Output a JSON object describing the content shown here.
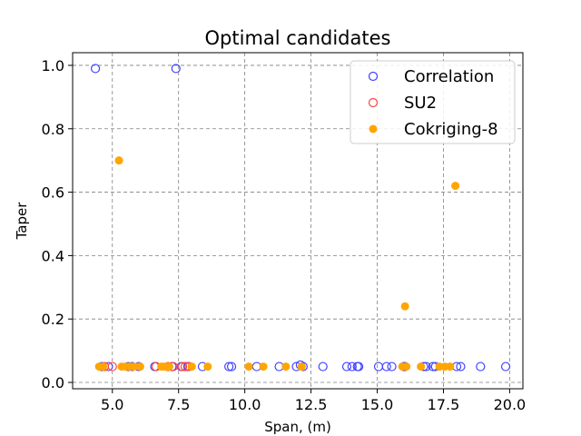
{
  "chart_data": {
    "type": "scatter",
    "title": "Optimal candidates",
    "xlabel": "Span, (m)",
    "ylabel": "Taper",
    "xlim": [
      3.5,
      20.5
    ],
    "ylim": [
      -0.02,
      1.04
    ],
    "xticks": [
      5.0,
      7.5,
      10.0,
      12.5,
      15.0,
      17.5,
      20.0
    ],
    "xtick_labels": [
      "5.0",
      "7.5",
      "10.0",
      "12.5",
      "15.0",
      "17.5",
      "20.0"
    ],
    "yticks": [
      0.0,
      0.2,
      0.4,
      0.6,
      0.8,
      1.0
    ],
    "ytick_labels": [
      "0.0",
      "0.2",
      "0.4",
      "0.6",
      "0.8",
      "1.0"
    ],
    "grid": true,
    "legend_position": "top-right",
    "series": [
      {
        "name": "Correlation",
        "color": "#4040ff",
        "marker": "hollow-circle",
        "points": [
          [
            4.36,
            0.99
          ],
          [
            7.4,
            0.99
          ],
          [
            4.6,
            0.05
          ],
          [
            4.85,
            0.05
          ],
          [
            5.6,
            0.05
          ],
          [
            5.75,
            0.05
          ],
          [
            6.0,
            0.05
          ],
          [
            6.6,
            0.05
          ],
          [
            7.25,
            0.05
          ],
          [
            7.6,
            0.05
          ],
          [
            7.85,
            0.05
          ],
          [
            8.4,
            0.05
          ],
          [
            9.4,
            0.05
          ],
          [
            9.5,
            0.05
          ],
          [
            10.45,
            0.05
          ],
          [
            11.3,
            0.05
          ],
          [
            11.95,
            0.05
          ],
          [
            12.1,
            0.055
          ],
          [
            12.2,
            0.05
          ],
          [
            12.95,
            0.05
          ],
          [
            13.85,
            0.05
          ],
          [
            14.05,
            0.05
          ],
          [
            14.25,
            0.05
          ],
          [
            14.3,
            0.05
          ],
          [
            15.05,
            0.05
          ],
          [
            15.35,
            0.05
          ],
          [
            15.55,
            0.05
          ],
          [
            16.0,
            0.05
          ],
          [
            16.05,
            0.05
          ],
          [
            16.75,
            0.05
          ],
          [
            16.85,
            0.05
          ],
          [
            17.1,
            0.05
          ],
          [
            17.2,
            0.05
          ],
          [
            18.0,
            0.05
          ],
          [
            18.15,
            0.05
          ],
          [
            18.9,
            0.05
          ],
          [
            19.85,
            0.05
          ]
        ]
      },
      {
        "name": "SU2",
        "color": "#ff4040",
        "marker": "hollow-circle",
        "points": [
          [
            4.7,
            0.05
          ],
          [
            5.0,
            0.05
          ],
          [
            6.65,
            0.05
          ],
          [
            7.1,
            0.05
          ],
          [
            7.3,
            0.05
          ],
          [
            7.65,
            0.05
          ],
          [
            7.75,
            0.05
          ],
          [
            7.9,
            0.05
          ]
        ]
      },
      {
        "name": "Cokriging-8",
        "color": "#ffa500",
        "marker": "filled-circle",
        "points": [
          [
            5.25,
            0.7
          ],
          [
            17.95,
            0.62
          ],
          [
            16.05,
            0.24
          ],
          [
            4.5,
            0.05
          ],
          [
            4.65,
            0.05
          ],
          [
            5.35,
            0.05
          ],
          [
            5.5,
            0.05
          ],
          [
            5.65,
            0.05
          ],
          [
            5.8,
            0.05
          ],
          [
            6.05,
            0.05
          ],
          [
            6.85,
            0.05
          ],
          [
            6.95,
            0.05
          ],
          [
            7.05,
            0.05
          ],
          [
            7.15,
            0.05
          ],
          [
            8.0,
            0.05
          ],
          [
            8.6,
            0.05
          ],
          [
            10.15,
            0.05
          ],
          [
            10.7,
            0.05
          ],
          [
            11.55,
            0.05
          ],
          [
            12.15,
            0.05
          ],
          [
            15.95,
            0.05
          ],
          [
            16.1,
            0.05
          ],
          [
            16.65,
            0.05
          ],
          [
            17.35,
            0.05
          ],
          [
            17.55,
            0.05
          ],
          [
            17.75,
            0.05
          ]
        ]
      }
    ]
  }
}
